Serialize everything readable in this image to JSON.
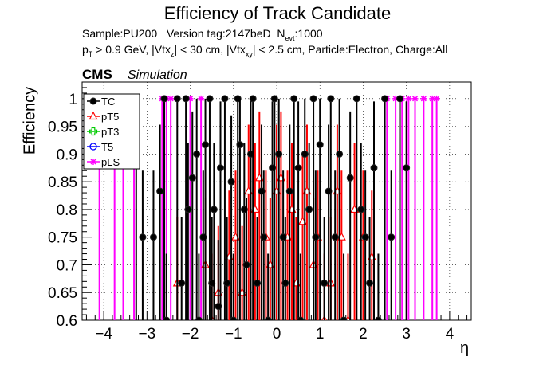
{
  "title": "Efficiency of Track Candidate",
  "info": {
    "sample": "Sample:PU200",
    "version": "Version tag:2147beD",
    "nevt_prefix": "N",
    "nevt_sub": "evt",
    "nevt_value": ":1000",
    "cuts_pt": "p",
    "cuts_pt_sub": "T",
    "cuts_1": " > 0.9 GeV, |Vtx",
    "cuts_z_sub": "z",
    "cuts_2": "| < 30 cm, |Vtx",
    "cuts_xy_sub": "xy",
    "cuts_3": "| < 2.5 cm, Particle:Electron, Charge:All"
  },
  "cms": "CMS",
  "simulation": "Simulation",
  "chart_data": {
    "type": "scatter",
    "title": "Efficiency of Track Candidate",
    "xlabel": "η",
    "ylabel": "Efficiency",
    "xlim": [
      -4.5,
      4.5
    ],
    "ylim": [
      0.6,
      1.03
    ],
    "xticks": [
      -4,
      -3,
      -2,
      -1,
      0,
      1,
      2,
      3,
      4
    ],
    "yticks": [
      0.6,
      0.65,
      0.7,
      0.75,
      0.8,
      0.85,
      0.9,
      0.95,
      1
    ],
    "grid": true,
    "legend_position": "top-left",
    "series": [
      {
        "name": "TC",
        "color": "#000000",
        "marker": "filled-circle",
        "points": [
          [
            -3.25,
            1
          ],
          [
            -3.1,
            0.75
          ],
          [
            -2.85,
            0.75
          ],
          [
            -2.7,
            0.833
          ],
          [
            -2.6,
            1
          ],
          [
            -2.55,
            0.6
          ],
          [
            -2.3,
            1
          ],
          [
            -2.2,
            0.667
          ],
          [
            -2.1,
            1
          ],
          [
            -2.05,
            0.8
          ],
          [
            -1.95,
            0.857
          ],
          [
            -1.85,
            0.9
          ],
          [
            -1.8,
            0.6
          ],
          [
            -1.7,
            0.75
          ],
          [
            -1.65,
            0.917
          ],
          [
            -1.55,
            1
          ],
          [
            -1.5,
            0.667
          ],
          [
            -1.45,
            0.8
          ],
          [
            -1.35,
            0.625
          ],
          [
            -1.3,
            0.875
          ],
          [
            -1.2,
            1
          ],
          [
            -1.15,
            0.667
          ],
          [
            -1.05,
            0.85
          ],
          [
            -1.0,
            0.6
          ],
          [
            -0.9,
            1
          ],
          [
            -0.85,
            0.917
          ],
          [
            -0.75,
            0.8
          ],
          [
            -0.7,
            0.7
          ],
          [
            -0.6,
            0.9
          ],
          [
            -0.55,
            1
          ],
          [
            -0.45,
            0.667
          ],
          [
            -0.35,
            0.833
          ],
          [
            -0.3,
            0.75
          ],
          [
            -0.2,
            0.6
          ],
          [
            -0.1,
            0.875
          ],
          [
            -0.05,
            1
          ],
          [
            0.05,
            0.9
          ],
          [
            0.15,
            0.75
          ],
          [
            0.2,
            0.667
          ],
          [
            0.3,
            0.833
          ],
          [
            0.4,
            1
          ],
          [
            0.5,
            0.875
          ],
          [
            0.55,
            0.6
          ],
          [
            0.65,
            0.9
          ],
          [
            0.75,
            0.8
          ],
          [
            0.85,
            1
          ],
          [
            0.9,
            0.75
          ],
          [
            1.0,
            0.917
          ],
          [
            1.1,
            0.667
          ],
          [
            1.2,
            0.833
          ],
          [
            1.25,
            1
          ],
          [
            1.35,
            0.75
          ],
          [
            1.45,
            0.9
          ],
          [
            1.55,
            0.6
          ],
          [
            1.7,
            0.857
          ],
          [
            1.85,
            1
          ],
          [
            1.95,
            0.8
          ],
          [
            2.05,
            0.75
          ],
          [
            2.15,
            0.667
          ],
          [
            2.25,
            0.875
          ],
          [
            2.35,
            0.6
          ],
          [
            2.5,
            1
          ],
          [
            2.65,
            0.75
          ],
          [
            2.85,
            1
          ],
          [
            3.0,
            0.875
          ]
        ]
      },
      {
        "name": "pT5",
        "color": "#ff0000",
        "marker": "open-triangle",
        "points": [
          [
            -2.3,
            0.667
          ],
          [
            -1.65,
            0.7
          ],
          [
            -1.5,
            0.6
          ],
          [
            -1.35,
            0.65
          ],
          [
            -1.1,
            0.714
          ],
          [
            -0.95,
            0.75
          ],
          [
            -0.8,
            0.65
          ],
          [
            -0.65,
            0.833
          ],
          [
            -0.5,
            0.8
          ],
          [
            -0.4,
            0.857
          ],
          [
            -0.25,
            0.75
          ],
          [
            -0.15,
            0.7
          ],
          [
            0.0,
            0.833
          ],
          [
            0.1,
            0.857
          ],
          [
            0.25,
            0.75
          ],
          [
            0.35,
            0.8
          ],
          [
            0.45,
            0.667
          ],
          [
            0.6,
            0.778
          ],
          [
            0.7,
            0.833
          ],
          [
            0.85,
            0.7
          ],
          [
            0.95,
            0.75
          ],
          [
            1.1,
            0.6
          ],
          [
            1.25,
            0.667
          ],
          [
            1.4,
            0.833
          ],
          [
            1.5,
            0.75
          ],
          [
            1.65,
            0.6
          ],
          [
            1.8,
            0.8
          ],
          [
            2.0,
            0.75
          ],
          [
            2.2,
            0.714
          ]
        ]
      },
      {
        "name": "pT3",
        "color": "#00cc00",
        "marker": "open-cross",
        "points": []
      },
      {
        "name": "T5",
        "color": "#0000ff",
        "marker": "open-circle",
        "points": []
      },
      {
        "name": "pLS",
        "color": "#ff00ff",
        "marker": "open-star",
        "points": [
          [
            -4.1,
            1
          ],
          [
            -3.75,
            1
          ],
          [
            -3.55,
            1
          ],
          [
            -3.3,
            1
          ],
          [
            -2.65,
            1
          ],
          [
            -2.55,
            1
          ],
          [
            -2.45,
            1
          ],
          [
            -2.0,
            1
          ],
          [
            -1.75,
            1
          ],
          [
            2.55,
            1
          ],
          [
            2.75,
            1
          ],
          [
            2.9,
            1
          ],
          [
            3.05,
            1
          ],
          [
            3.2,
            1
          ],
          [
            3.4,
            1
          ],
          [
            3.6,
            1
          ],
          [
            3.7,
            1
          ]
        ]
      }
    ]
  }
}
